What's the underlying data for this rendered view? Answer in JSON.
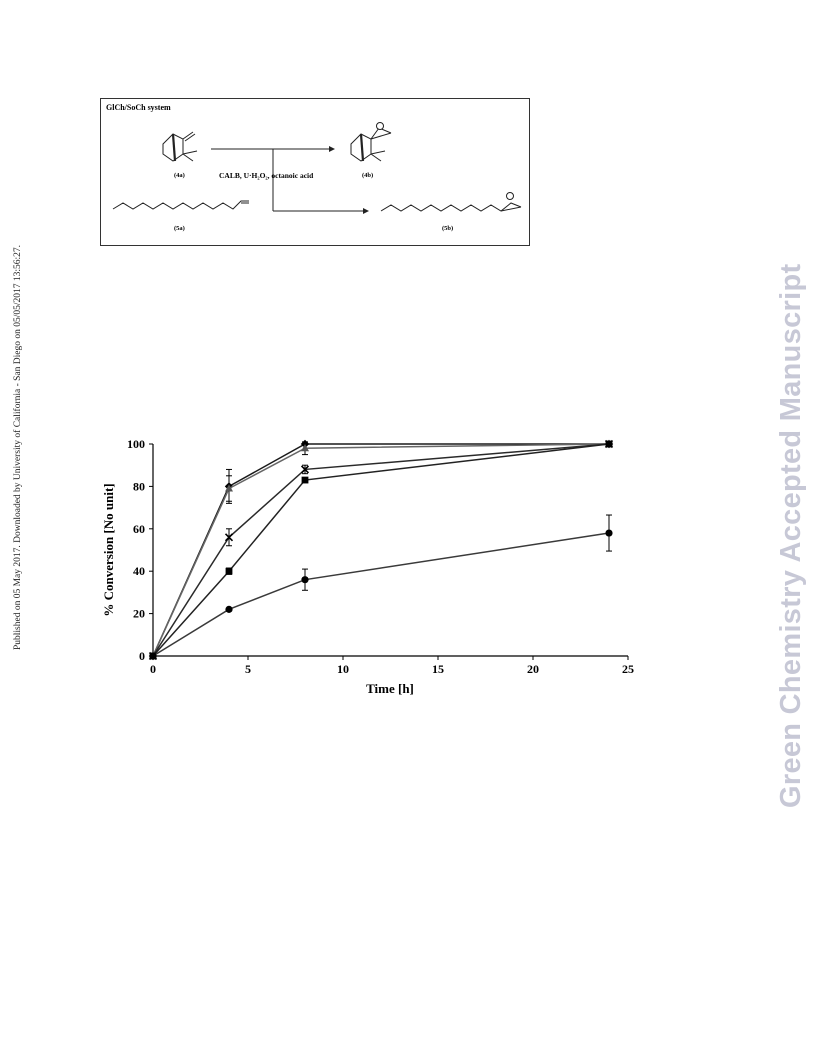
{
  "sidebar_note": "Published on 05 May 2017. Downloaded by University of California - San Diego on 05/05/2017 13:56:27.",
  "watermark": "Green Chemistry Accepted Manuscript",
  "scheme": {
    "title": "GlCh/SoCh system",
    "labels": {
      "a4": "(4a)",
      "b4": "(4b)",
      "a5": "(5a)",
      "b5": "(5b)"
    },
    "conditions": "CALB, U·H₂O₂, octanoic acid",
    "epoxide_atom": "O"
  },
  "chart_data": {
    "type": "line",
    "xlabel": "Time [h]",
    "ylabel": "% Conversion [No unit]",
    "xlim": [
      0,
      25
    ],
    "ylim": [
      0,
      100
    ],
    "xticks": [
      0,
      5,
      10,
      15,
      20,
      25
    ],
    "yticks": [
      0,
      20,
      40,
      60,
      80,
      100
    ],
    "grid": false,
    "legend": "none",
    "series": [
      {
        "marker": "diamond",
        "x": [
          0,
          4,
          8,
          24
        ],
        "y": [
          0,
          80,
          100,
          100
        ],
        "err": [
          0,
          8,
          0,
          0
        ]
      },
      {
        "marker": "triangle",
        "x": [
          0,
          4,
          8,
          24
        ],
        "y": [
          0,
          79,
          98,
          100
        ],
        "err": [
          0,
          6,
          3,
          0
        ]
      },
      {
        "marker": "x",
        "x": [
          0,
          4,
          8,
          24
        ],
        "y": [
          0,
          56,
          88,
          100
        ],
        "err": [
          0,
          4,
          2,
          0
        ]
      },
      {
        "marker": "square",
        "x": [
          0,
          4,
          8,
          24
        ],
        "y": [
          0,
          40,
          83,
          100
        ],
        "err": [
          0,
          1.5,
          0,
          0
        ]
      },
      {
        "marker": "circle",
        "x": [
          0,
          4,
          8,
          24
        ],
        "y": [
          0,
          22,
          36,
          58
        ],
        "err": [
          0,
          0.5,
          5,
          8.5
        ]
      }
    ]
  }
}
